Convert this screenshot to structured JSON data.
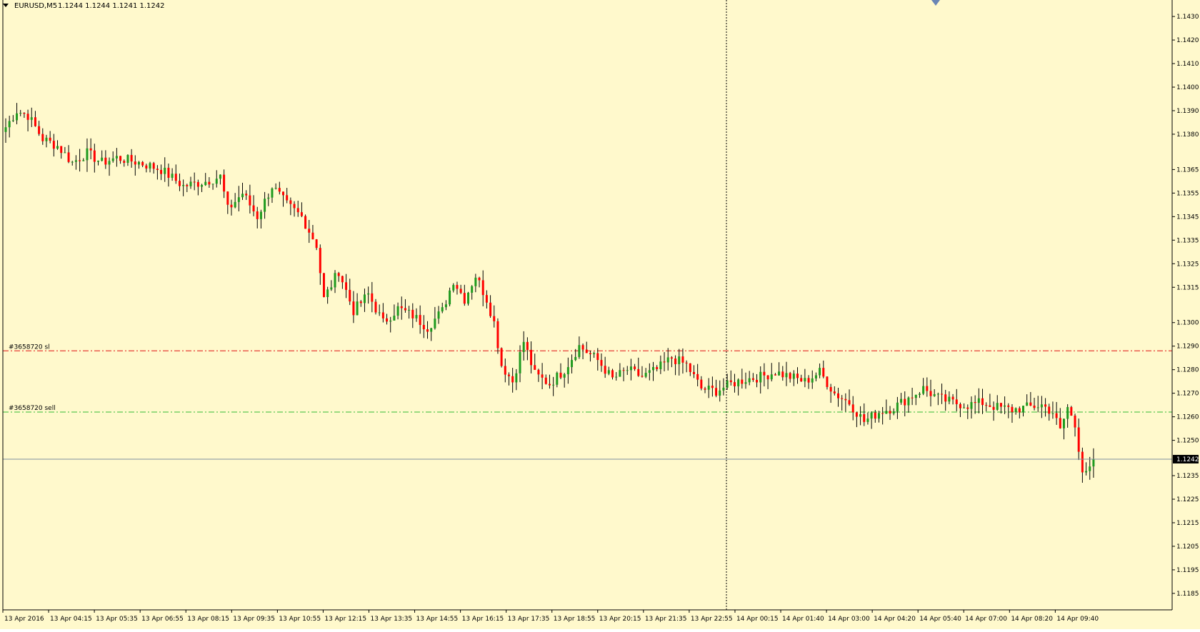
{
  "header": {
    "symbol": "EURUSD,M5",
    "ohlc": "1.1244 1.1244 1.1241 1.1242"
  },
  "colors": {
    "background": "#fff9cc",
    "axis": "#000000",
    "bull": "#1f9a1f",
    "bear": "#ff0000",
    "sl_line": "#e01010",
    "sell_line": "#33bb33",
    "bid_line": "#7f8fa0",
    "price_label_bg": "#000000",
    "price_label_fg": "#ffffff"
  },
  "chart_data": {
    "type": "candlestick",
    "ylim": [
      1.1178,
      1.1437
    ],
    "ytick_labels": [
      "1.1430",
      "1.1420",
      "1.1410",
      "1.1400",
      "1.1390",
      "1.1380",
      "1.1365",
      "1.1355",
      "1.1345",
      "1.1335",
      "1.1325",
      "1.1315",
      "1.1300",
      "1.1290",
      "1.1280",
      "1.1270",
      "1.1260",
      "1.1250",
      "1.1235",
      "1.1225",
      "1.1215",
      "1.1205",
      "1.1195",
      "1.1185"
    ],
    "xtick_labels": [
      "13 Apr 2016",
      "13 Apr 04:15",
      "13 Apr 05:35",
      "13 Apr 06:55",
      "13 Apr 08:15",
      "13 Apr 09:35",
      "13 Apr 10:55",
      "13 Apr 12:15",
      "13 Apr 13:35",
      "13 Apr 14:55",
      "13 Apr 16:15",
      "13 Apr 17:35",
      "13 Apr 18:55",
      "13 Apr 20:15",
      "13 Apr 21:35",
      "13 Apr 22:55",
      "14 Apr 00:15",
      "14 Apr 01:40",
      "14 Apr 03:00",
      "14 Apr 04:20",
      "14 Apr 05:40",
      "14 Apr 07:00",
      "14 Apr 08:20",
      "14 Apr 09:40"
    ],
    "current_price": "1.1242",
    "levels": [
      {
        "label": "#3658720 sl",
        "price": 1.1288
      },
      {
        "label": "#3658720 sell",
        "price": 1.1262
      }
    ],
    "anchors": [
      [
        0,
        1.1383
      ],
      [
        3,
        1.139
      ],
      [
        6,
        1.1388
      ],
      [
        10,
        1.1378
      ],
      [
        14,
        1.1375
      ],
      [
        18,
        1.1368
      ],
      [
        22,
        1.1372
      ],
      [
        26,
        1.1368
      ],
      [
        30,
        1.137
      ],
      [
        36,
        1.1368
      ],
      [
        42,
        1.1365
      ],
      [
        48,
        1.1358
      ],
      [
        54,
        1.136
      ],
      [
        58,
        1.1362
      ],
      [
        60,
        1.1348
      ],
      [
        64,
        1.1355
      ],
      [
        68,
        1.1345
      ],
      [
        72,
        1.1358
      ],
      [
        76,
        1.135
      ],
      [
        80,
        1.1345
      ],
      [
        84,
        1.1333
      ],
      [
        86,
        1.131
      ],
      [
        90,
        1.1322
      ],
      [
        94,
        1.1305
      ],
      [
        98,
        1.1312
      ],
      [
        102,
        1.13
      ],
      [
        106,
        1.1306
      ],
      [
        110,
        1.1303
      ],
      [
        114,
        1.1298
      ],
      [
        118,
        1.1305
      ],
      [
        121,
        1.1318
      ],
      [
        124,
        1.131
      ],
      [
        127,
        1.132
      ],
      [
        130,
        1.131
      ],
      [
        132,
        1.13
      ],
      [
        134,
        1.1282
      ],
      [
        137,
        1.1275
      ],
      [
        140,
        1.1292
      ],
      [
        143,
        1.1278
      ],
      [
        147,
        1.1274
      ],
      [
        151,
        1.128
      ],
      [
        155,
        1.129
      ],
      [
        160,
        1.1284
      ],
      [
        164,
        1.1276
      ],
      [
        168,
        1.128
      ],
      [
        172,
        1.1277
      ],
      [
        176,
        1.128
      ],
      [
        180,
        1.1285
      ],
      [
        184,
        1.1282
      ],
      [
        188,
        1.1272
      ],
      [
        192,
        1.1271
      ],
      [
        196,
        1.1274
      ],
      [
        200,
        1.1276
      ],
      [
        204,
        1.1277
      ],
      [
        208,
        1.1279
      ],
      [
        212,
        1.1277
      ],
      [
        216,
        1.1275
      ],
      [
        220,
        1.1279
      ],
      [
        224,
        1.127
      ],
      [
        228,
        1.1266
      ],
      [
        232,
        1.1258
      ],
      [
        236,
        1.1262
      ],
      [
        240,
        1.1264
      ],
      [
        244,
        1.1268
      ],
      [
        248,
        1.1272
      ],
      [
        252,
        1.1268
      ],
      [
        256,
        1.1266
      ],
      [
        260,
        1.1265
      ],
      [
        264,
        1.1266
      ],
      [
        268,
        1.1264
      ],
      [
        272,
        1.1263
      ],
      [
        276,
        1.1264
      ],
      [
        280,
        1.1265
      ],
      [
        283,
        1.1262
      ],
      [
        285,
        1.1254
      ],
      [
        287,
        1.1264
      ],
      [
        289,
        1.1256
      ],
      [
        291,
        1.1238
      ],
      [
        293,
        1.1237
      ],
      [
        294,
        1.1242
      ]
    ]
  }
}
